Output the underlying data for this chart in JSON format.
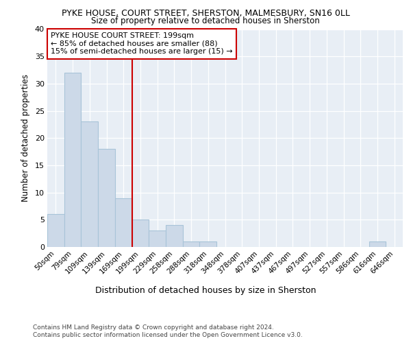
{
  "title1": "PYKE HOUSE, COURT STREET, SHERSTON, MALMESBURY, SN16 0LL",
  "title2": "Size of property relative to detached houses in Sherston",
  "xlabel": "Distribution of detached houses by size in Sherston",
  "ylabel": "Number of detached properties",
  "bar_labels": [
    "50sqm",
    "79sqm",
    "109sqm",
    "139sqm",
    "169sqm",
    "199sqm",
    "229sqm",
    "258sqm",
    "288sqm",
    "318sqm",
    "348sqm",
    "378sqm",
    "407sqm",
    "437sqm",
    "467sqm",
    "497sqm",
    "527sqm",
    "557sqm",
    "586sqm",
    "616sqm",
    "646sqm"
  ],
  "bar_values": [
    6,
    32,
    23,
    18,
    9,
    5,
    3,
    4,
    1,
    1,
    0,
    0,
    0,
    0,
    0,
    0,
    0,
    0,
    0,
    1,
    0
  ],
  "bar_color": "#ccd9e8",
  "bar_edge_color": "#a8c4d8",
  "vline_color": "#cc0000",
  "annotation_text": "PYKE HOUSE COURT STREET: 199sqm\n← 85% of detached houses are smaller (88)\n15% of semi-detached houses are larger (15) →",
  "annotation_box_color": "#ffffff",
  "annotation_box_edge": "#cc0000",
  "ylim": [
    0,
    40
  ],
  "yticks": [
    0,
    5,
    10,
    15,
    20,
    25,
    30,
    35,
    40
  ],
  "background_color": "#e8eef5",
  "grid_color": "#ffffff",
  "footer1": "Contains HM Land Registry data © Crown copyright and database right 2024.",
  "footer2": "Contains public sector information licensed under the Open Government Licence v3.0."
}
